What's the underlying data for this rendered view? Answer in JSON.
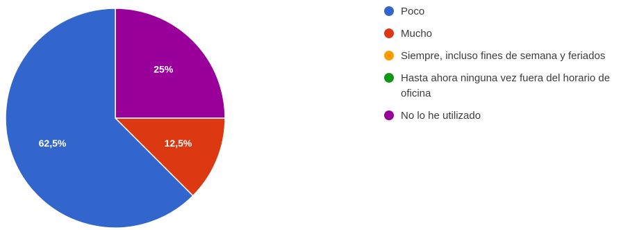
{
  "chart_data": {
    "type": "pie",
    "title": "",
    "slices": [
      {
        "label": "Poco",
        "value": 62.5,
        "display": "62,5%",
        "color": "#3366cc"
      },
      {
        "label": "Mucho",
        "value": 12.5,
        "display": "12,5%",
        "color": "#dc3912"
      },
      {
        "label": "Siempre, incluso fines de semana y feriados",
        "value": 0,
        "display": "",
        "color": "#ff9900"
      },
      {
        "label": "Hasta ahora ninguna vez fuera del horario de oficina",
        "value": 0,
        "display": "",
        "color": "#109618"
      },
      {
        "label": "No lo he utilizado",
        "value": 25,
        "display": "25%",
        "color": "#990099"
      }
    ],
    "legend_position": "right"
  }
}
